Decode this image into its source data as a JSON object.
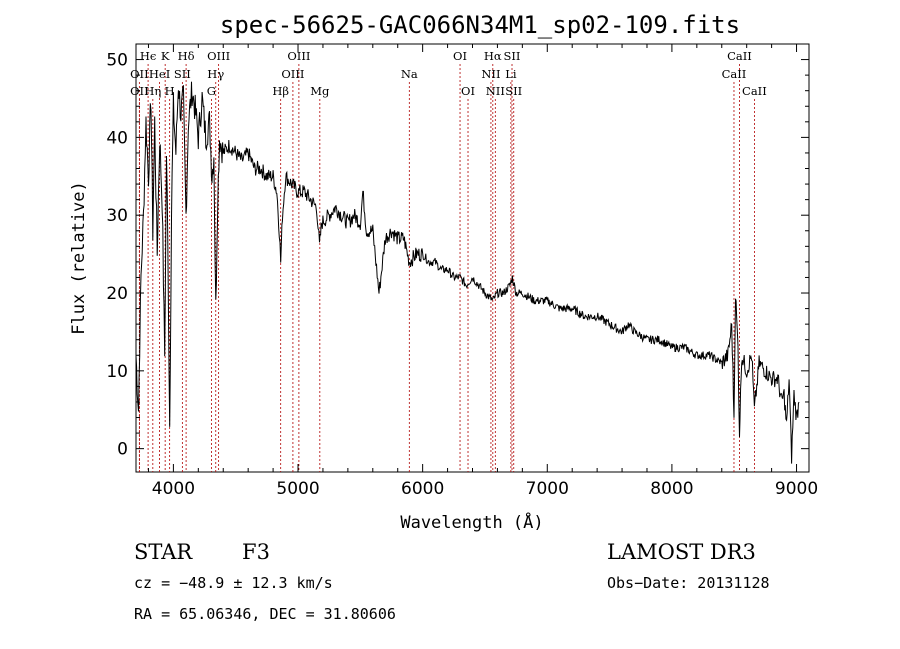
{
  "chart_data": {
    "type": "line",
    "title": "spec-56625-GAC066N34M1_sp02-109.fits",
    "xlabel": "Wavelength (Å)",
    "ylabel": "Flux (relative)",
    "xlim": [
      3700,
      9100
    ],
    "ylim": [
      -3,
      52
    ],
    "x_ticks": [
      4000,
      5000,
      6000,
      7000,
      8000,
      9000
    ],
    "y_ticks": [
      0,
      10,
      20,
      30,
      40,
      50
    ],
    "series": [
      {
        "name": "spectrum",
        "anchors": [
          [
            3700,
            12
          ],
          [
            3720,
            5
          ],
          [
            3740,
            22
          ],
          [
            3760,
            30
          ],
          [
            3780,
            42
          ],
          [
            3800,
            35
          ],
          [
            3820,
            45
          ],
          [
            3835,
            28
          ],
          [
            3850,
            42
          ],
          [
            3870,
            25
          ],
          [
            3890,
            40
          ],
          [
            3910,
            32
          ],
          [
            3930,
            12
          ],
          [
            3945,
            38
          ],
          [
            3960,
            20
          ],
          [
            3970,
            3
          ],
          [
            3985,
            30
          ],
          [
            4000,
            44
          ],
          [
            4020,
            38
          ],
          [
            4040,
            47
          ],
          [
            4060,
            43
          ],
          [
            4080,
            45
          ],
          [
            4101,
            30
          ],
          [
            4120,
            42
          ],
          [
            4150,
            46
          ],
          [
            4180,
            43
          ],
          [
            4200,
            40
          ],
          [
            4230,
            45
          ],
          [
            4260,
            40
          ],
          [
            4290,
            42
          ],
          [
            4310,
            35
          ],
          [
            4325,
            38
          ],
          [
            4340,
            18
          ],
          [
            4355,
            32
          ],
          [
            4370,
            40
          ],
          [
            4400,
            38
          ],
          [
            4450,
            39
          ],
          [
            4500,
            38
          ],
          [
            4550,
            37
          ],
          [
            4600,
            38
          ],
          [
            4650,
            36
          ],
          [
            4700,
            36
          ],
          [
            4750,
            35
          ],
          [
            4800,
            35
          ],
          [
            4830,
            33
          ],
          [
            4850,
            28
          ],
          [
            4861,
            24
          ],
          [
            4875,
            30
          ],
          [
            4900,
            35
          ],
          [
            4950,
            34
          ],
          [
            5000,
            33
          ],
          [
            5050,
            33
          ],
          [
            5100,
            32
          ],
          [
            5150,
            31
          ],
          [
            5172,
            26
          ],
          [
            5190,
            29
          ],
          [
            5250,
            30
          ],
          [
            5300,
            31
          ],
          [
            5350,
            30
          ],
          [
            5400,
            29
          ],
          [
            5450,
            30
          ],
          [
            5500,
            29
          ],
          [
            5520,
            33
          ],
          [
            5550,
            28
          ],
          [
            5600,
            28
          ],
          [
            5650,
            20
          ],
          [
            5700,
            27
          ],
          [
            5750,
            28
          ],
          [
            5800,
            27
          ],
          [
            5850,
            27
          ],
          [
            5893,
            24
          ],
          [
            5950,
            25
          ],
          [
            6000,
            25
          ],
          [
            6050,
            24
          ],
          [
            6100,
            24
          ],
          [
            6150,
            23
          ],
          [
            6200,
            23
          ],
          [
            6250,
            22
          ],
          [
            6300,
            22
          ],
          [
            6350,
            21
          ],
          [
            6400,
            22
          ],
          [
            6450,
            21
          ],
          [
            6500,
            20
          ],
          [
            6563,
            19
          ],
          [
            6600,
            20
          ],
          [
            6650,
            20
          ],
          [
            6700,
            21
          ],
          [
            6720,
            22
          ],
          [
            6750,
            20
          ],
          [
            6800,
            20
          ],
          [
            6900,
            19
          ],
          [
            7000,
            19
          ],
          [
            7100,
            18
          ],
          [
            7200,
            18
          ],
          [
            7300,
            17
          ],
          [
            7400,
            17
          ],
          [
            7500,
            16
          ],
          [
            7600,
            15
          ],
          [
            7650,
            16
          ],
          [
            7700,
            15
          ],
          [
            7800,
            14
          ],
          [
            7900,
            14
          ],
          [
            8000,
            13
          ],
          [
            8100,
            13
          ],
          [
            8200,
            12
          ],
          [
            8300,
            12
          ],
          [
            8400,
            11
          ],
          [
            8450,
            12
          ],
          [
            8480,
            16
          ],
          [
            8498,
            4
          ],
          [
            8510,
            20
          ],
          [
            8530,
            13
          ],
          [
            8542,
            2
          ],
          [
            8560,
            12
          ],
          [
            8600,
            10
          ],
          [
            8640,
            12
          ],
          [
            8662,
            5
          ],
          [
            8700,
            11
          ],
          [
            8750,
            10
          ],
          [
            8800,
            9
          ],
          [
            8850,
            9
          ],
          [
            8880,
            6
          ],
          [
            8900,
            7
          ],
          [
            8920,
            3
          ],
          [
            8940,
            9
          ],
          [
            8960,
            -1
          ],
          [
            8980,
            7
          ],
          [
            9000,
            4
          ],
          [
            9020,
            6
          ]
        ],
        "noise_seed": 7
      }
    ],
    "lines": [
      {
        "name": "Hϵ",
        "wavelength": 3797,
        "row": 0
      },
      {
        "name": "K",
        "wavelength": 3934,
        "row": 0
      },
      {
        "name": "Hδ",
        "wavelength": 4102,
        "row": 0
      },
      {
        "name": "OIII",
        "wavelength": 4363,
        "row": 0
      },
      {
        "name": "OIII",
        "wavelength": 5007,
        "row": 0
      },
      {
        "name": "OI",
        "wavelength": 6300,
        "row": 0
      },
      {
        "name": "Hα",
        "wavelength": 6563,
        "row": 0
      },
      {
        "name": "SII",
        "wavelength": 6717,
        "row": 0
      },
      {
        "name": "CaII",
        "wavelength": 8542,
        "row": 0
      },
      {
        "name": "OII",
        "wavelength": 3727,
        "row": 1
      },
      {
        "name": "HeI",
        "wavelength": 3889,
        "row": 1
      },
      {
        "name": "SII",
        "wavelength": 4072,
        "row": 1
      },
      {
        "name": "Hγ",
        "wavelength": 4340,
        "row": 1
      },
      {
        "name": "OIII",
        "wavelength": 4959,
        "row": 1
      },
      {
        "name": "Na",
        "wavelength": 5893,
        "row": 1
      },
      {
        "name": "NII",
        "wavelength": 6548,
        "row": 1
      },
      {
        "name": "Li",
        "wavelength": 6708,
        "row": 1
      },
      {
        "name": "CaII",
        "wavelength": 8498,
        "row": 1
      },
      {
        "name": "OII",
        "wavelength": 3727,
        "row": 2
      },
      {
        "name": "Hη",
        "wavelength": 3835,
        "row": 2
      },
      {
        "name": "H",
        "wavelength": 3970,
        "row": 2
      },
      {
        "name": "G",
        "wavelength": 4305,
        "row": 2
      },
      {
        "name": "Hβ",
        "wavelength": 4861,
        "row": 2
      },
      {
        "name": "Mg",
        "wavelength": 5175,
        "row": 2
      },
      {
        "name": "OI",
        "wavelength": 6364,
        "row": 2
      },
      {
        "name": "NII",
        "wavelength": 6583,
        "row": 2
      },
      {
        "name": "SII",
        "wavelength": 6731,
        "row": 2
      },
      {
        "name": "CaII",
        "wavelength": 8662,
        "row": 2
      }
    ]
  },
  "info": {
    "class": "STAR",
    "subclass": "F3",
    "survey": "LAMOST DR3",
    "cz": "cz = −48.9 ± 12.3 km/s",
    "obs_date": "Obs−Date: 20131128",
    "coords": "RA =  65.06346, DEC =  31.80606"
  },
  "colors": {
    "spectrum": "#000000",
    "line_markers": "#b00000",
    "axis": "#000000"
  }
}
